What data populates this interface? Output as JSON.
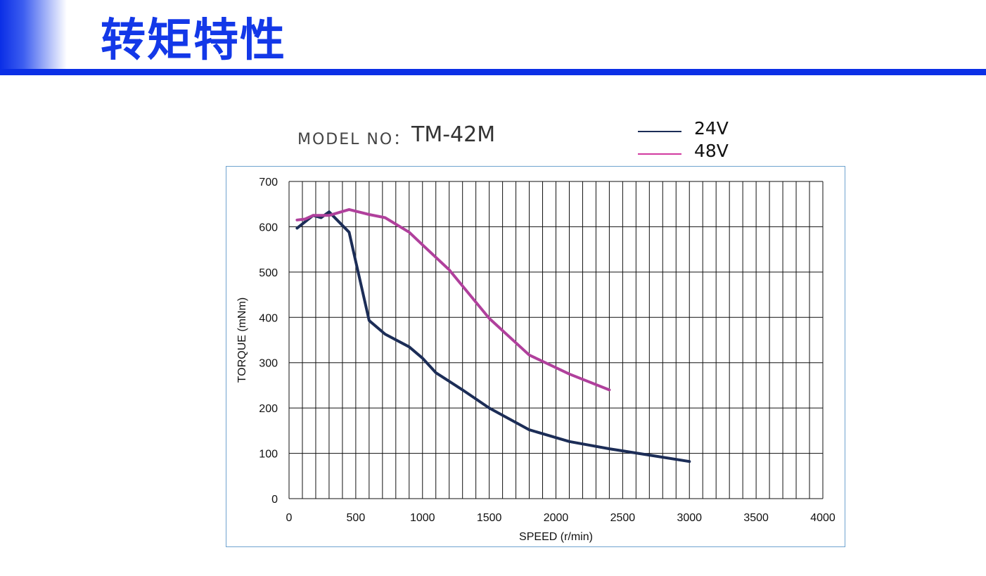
{
  "header": {
    "title": "转矩特性",
    "accent_color": "#0b2fe6"
  },
  "model": {
    "label": "MODEL NO：",
    "value": "TM-42M"
  },
  "legend": [
    {
      "label": "24V",
      "color": "#1c2d57"
    },
    {
      "label": "48V",
      "color": "#b0409c"
    }
  ],
  "chart_data": {
    "type": "line",
    "xlabel": "SPEED (r/min)",
    "ylabel": "TORQUE (mNm)",
    "xlim": [
      0,
      4000
    ],
    "ylim": [
      0,
      700
    ],
    "xticks": [
      0,
      500,
      1000,
      1500,
      2000,
      2500,
      3000,
      3500,
      4000
    ],
    "yticks": [
      0,
      100,
      200,
      300,
      400,
      500,
      600,
      700
    ],
    "x_grid_step": 100,
    "y_grid_step": 100,
    "grid": true,
    "legend_position": "top-right",
    "series": [
      {
        "name": "24V",
        "color": "#1c2d57",
        "points": [
          [
            60,
            597
          ],
          [
            180,
            625
          ],
          [
            240,
            620
          ],
          [
            300,
            633
          ],
          [
            450,
            588
          ],
          [
            600,
            393
          ],
          [
            720,
            363
          ],
          [
            900,
            335
          ],
          [
            1000,
            310
          ],
          [
            1100,
            278
          ],
          [
            1300,
            240
          ],
          [
            1500,
            200
          ],
          [
            1800,
            152
          ],
          [
            2100,
            126
          ],
          [
            2400,
            110
          ],
          [
            2700,
            96
          ],
          [
            3000,
            82
          ]
        ]
      },
      {
        "name": "48V",
        "color": "#b0409c",
        "points": [
          [
            60,
            615
          ],
          [
            120,
            617
          ],
          [
            180,
            625
          ],
          [
            300,
            625
          ],
          [
            450,
            638
          ],
          [
            600,
            627
          ],
          [
            720,
            620
          ],
          [
            900,
            588
          ],
          [
            1000,
            560
          ],
          [
            1200,
            505
          ],
          [
            1500,
            398
          ],
          [
            1800,
            317
          ],
          [
            2100,
            275
          ],
          [
            2400,
            240
          ]
        ]
      }
    ]
  }
}
